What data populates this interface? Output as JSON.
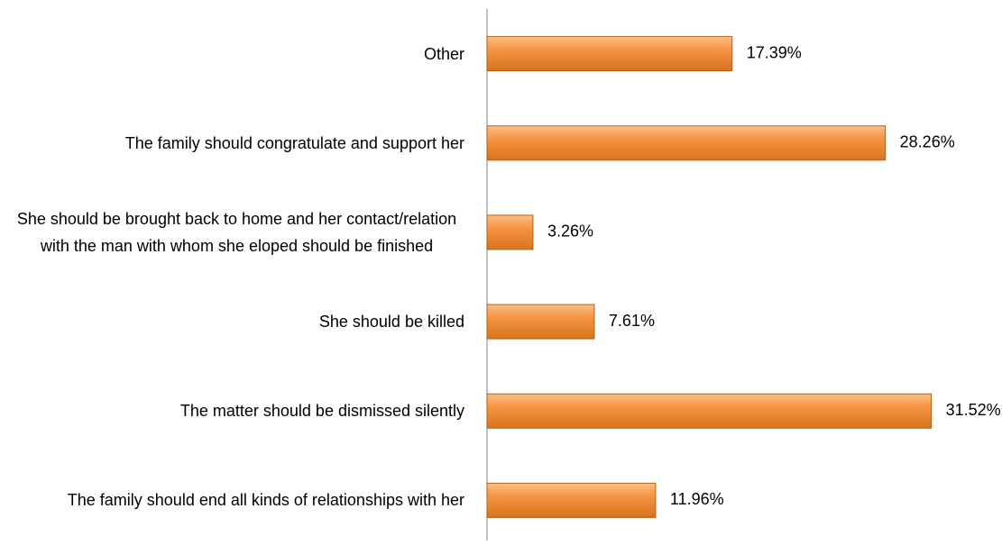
{
  "chart_data": {
    "type": "bar",
    "orientation": "horizontal",
    "categories": [
      "Other",
      "The family should congratulate and support her",
      "She should be brought back to home and her contact/relation with the man with whom she eloped should be finished",
      "She should be killed",
      "The matter should be dismissed silently",
      "The family should end all kinds of relationships with her"
    ],
    "values": [
      17.39,
      28.26,
      3.26,
      7.61,
      31.52,
      11.96
    ],
    "value_labels": [
      "17.39%",
      "28.26%",
      "3.26%",
      "7.61%",
      "31.52%",
      "11.96%"
    ],
    "color": "#f79646",
    "xlim": [
      0,
      35
    ]
  }
}
